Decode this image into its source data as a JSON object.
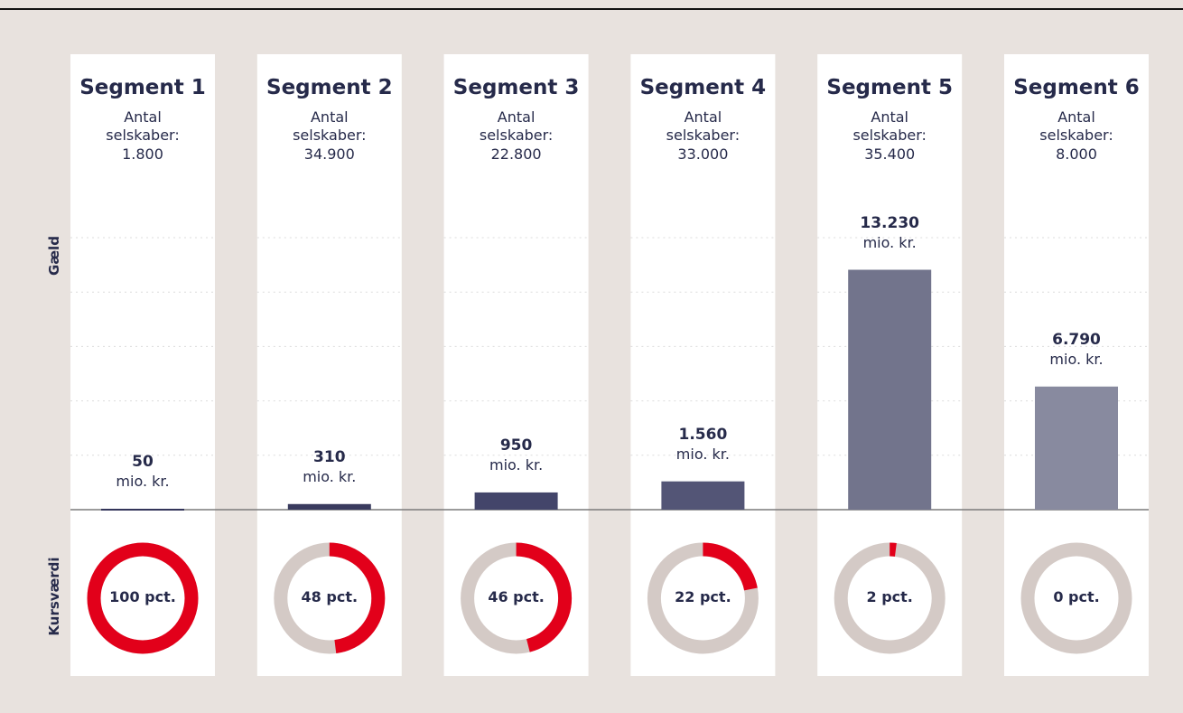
{
  "chart_data": [
    {
      "type": "bar",
      "axis_label": "Gæld",
      "categories": [
        "Segment 1",
        "Segment 2",
        "Segment 3",
        "Segment 4",
        "Segment 5",
        "Segment 6"
      ],
      "count_label": "Antal selskaber:",
      "company_counts": [
        1800,
        34900,
        22800,
        33000,
        35400,
        8000
      ],
      "company_count_labels": [
        "1.800",
        "34.900",
        "22.800",
        "33.000",
        "35.400",
        "8.000"
      ],
      "values": [
        50,
        310,
        950,
        1560,
        13230,
        6790
      ],
      "value_labels": [
        "50",
        "310",
        "950",
        "1.560",
        "13.230",
        "6.790"
      ],
      "unit": "mio. kr.",
      "colors": [
        "#33355a",
        "#393b5e",
        "#43456a",
        "#535576",
        "#72748c",
        "#888a9f"
      ],
      "ylim": [
        0,
        15000
      ],
      "yticks": [
        0,
        3000,
        6000,
        9000,
        12000,
        15000
      ],
      "grid": true
    },
    {
      "type": "donut",
      "axis_label": "Kursværdi",
      "values": [
        100,
        48,
        46,
        22,
        2,
        0
      ],
      "value_labels": [
        "100 pct.",
        "48 pct.",
        "46 pct.",
        "22 pct.",
        "2 pct.",
        "0 pct."
      ],
      "color": "#e2001a",
      "track_color": "#d4cac6"
    }
  ]
}
